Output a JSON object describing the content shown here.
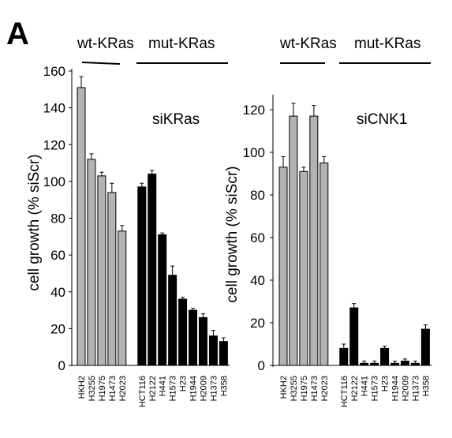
{
  "panel_label": "A",
  "chart_data": [
    {
      "type": "bar",
      "title": "siKRas",
      "ylabel": "cell growth (% siScr)",
      "ylim": [
        0,
        160
      ],
      "yticks": [
        0,
        20,
        40,
        60,
        80,
        100,
        120,
        140,
        160
      ],
      "groups": [
        {
          "label": "wt-KRas",
          "color": "#b3b3b3",
          "categories": [
            "HKH2",
            "H3255",
            "H1975",
            "H1473",
            "H2023"
          ],
          "values": [
            151,
            112,
            103,
            94,
            73
          ],
          "errors": [
            6,
            3,
            2,
            5,
            3
          ]
        },
        {
          "label": "mut-KRas",
          "color": "#000000",
          "categories": [
            "HCT116",
            "H2122",
            "H441",
            "H1573",
            "H23",
            "H1944",
            "H2009",
            "H1373",
            "H358"
          ],
          "values": [
            97,
            104,
            71,
            49,
            36,
            30,
            26,
            16,
            13
          ],
          "errors": [
            2,
            2,
            1,
            5,
            1,
            1,
            2,
            3,
            2
          ]
        }
      ]
    },
    {
      "type": "bar",
      "title": "siCNK1",
      "ylabel": "cell growth (% siScr)",
      "ylim": [
        0,
        130
      ],
      "yticks": [
        0,
        20,
        40,
        60,
        80,
        100,
        120
      ],
      "groups": [
        {
          "label": "wt-KRas",
          "color": "#b3b3b3",
          "categories": [
            "HKH2",
            "H3255",
            "H1975",
            "H1473",
            "H2023"
          ],
          "values": [
            93,
            117,
            91,
            117,
            95
          ],
          "errors": [
            5,
            6,
            2,
            5,
            3
          ]
        },
        {
          "label": "mut-KRas",
          "color": "#000000",
          "categories": [
            "HCT116",
            "H2122",
            "H441",
            "H1573",
            "H23",
            "H1944",
            "H2009",
            "H1373",
            "H358"
          ],
          "values": [
            8,
            27,
            1,
            1,
            8,
            1,
            2,
            1,
            17
          ],
          "errors": [
            2,
            2,
            1,
            1,
            1,
            1,
            1,
            1,
            2
          ]
        }
      ]
    }
  ]
}
